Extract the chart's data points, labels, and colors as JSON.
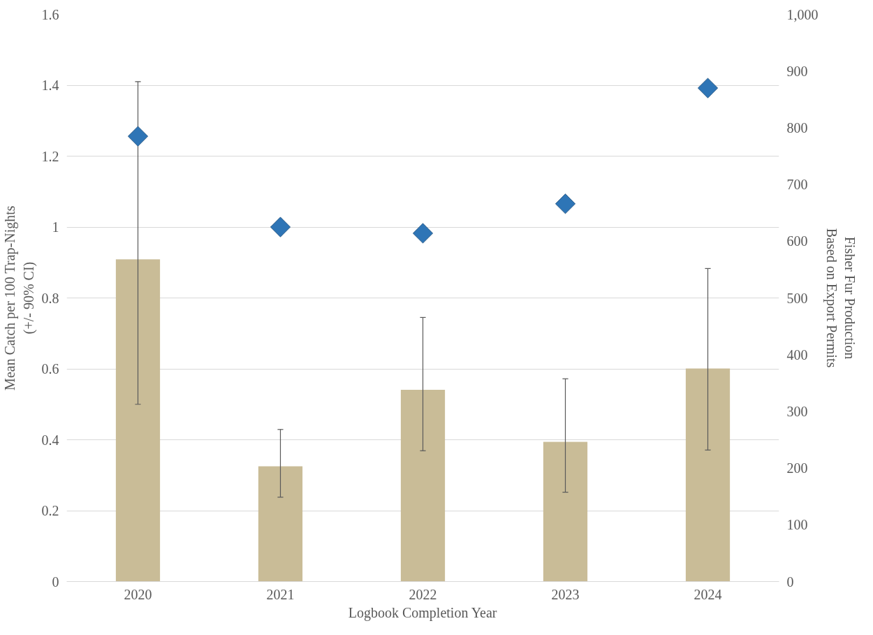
{
  "chart_data": {
    "type": "bar",
    "xlabel": "Logbook Completion Year",
    "ylabel": "Mean Catch per 100 Trap-Nights\n(+/- 90% CI)",
    "y2label": "Fisher Fur Production\nBased on Export Permits",
    "categories": [
      "2020",
      "2021",
      "2022",
      "2023",
      "2024"
    ],
    "series": [
      {
        "color": "#c9bc97",
        "values": [
          0.909,
          0.325,
          0.541,
          0.394,
          0.601
        ],
        "errors": [
          [
            0.5,
            1.41
          ],
          [
            0.238,
            0.429
          ],
          [
            0.369,
            0.745
          ],
          [
            0.252,
            0.572
          ],
          [
            0.371,
            0.883
          ]
        ]
      },
      {
        "type": "scatter",
        "axis": "y2",
        "color": "#2e75b6",
        "marker": "diamond",
        "values": [
          785,
          625,
          614,
          666,
          870
        ]
      }
    ],
    "ylim": [
      0,
      1.6
    ],
    "yticks": [
      0,
      0.2,
      0.4,
      0.6,
      0.8,
      1,
      1.2,
      1.4,
      1.6
    ],
    "y2lim": [
      0,
      1000
    ],
    "y2ticks": [
      0,
      100,
      200,
      300,
      400,
      500,
      600,
      700,
      800,
      900,
      {
        "value": 1000,
        "label": "1,000"
      }
    ],
    "grid": "y"
  }
}
